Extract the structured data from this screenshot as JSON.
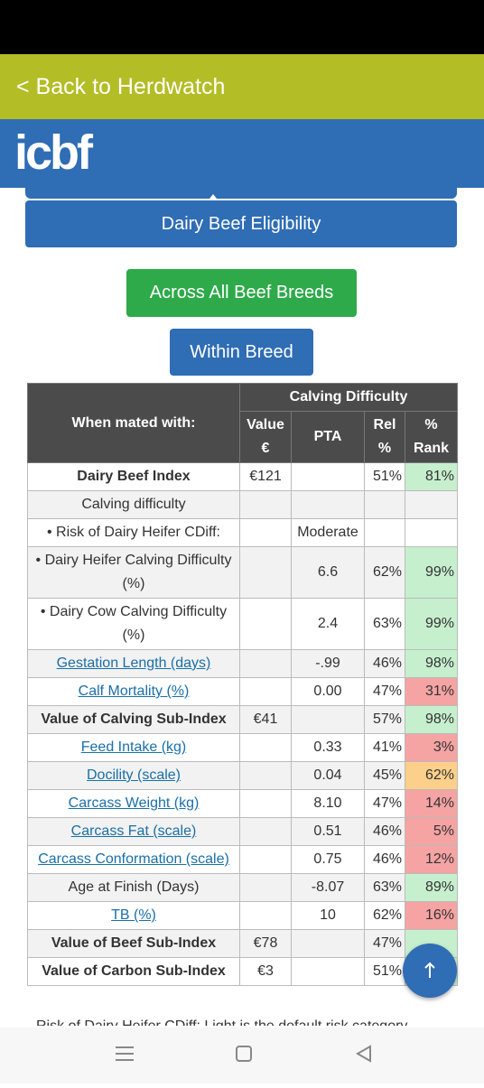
{
  "top_bar": {
    "back_link": "< Back to Herdwatch"
  },
  "header": {
    "logo": "icbf"
  },
  "buttons": {
    "eligibility": "Dairy Beef Eligibility",
    "across": "Across All Beef Breeds",
    "within": "Within Breed"
  },
  "table": {
    "header": {
      "mated": "When mated with:",
      "group": "Calving Difficulty",
      "value": "Value €",
      "pta": "PTA",
      "rel": "Rel %",
      "rank": "% Rank"
    },
    "rows": [
      {
        "label": "Dairy Beef Index",
        "style": "bold",
        "value": "€121",
        "rel": "51%",
        "rank": "81%",
        "rank_color": "green"
      },
      {
        "label": "Calving difficulty"
      },
      {
        "label": "• Risk of Dairy Heifer CDiff:",
        "pta": "Moderate"
      },
      {
        "label": "• Dairy Heifer Calving Difficulty (%)",
        "pta": "6.6",
        "rel": "62%",
        "rank": "99%",
        "rank_color": "green"
      },
      {
        "label": "• Dairy Cow Calving Difficulty (%)",
        "pta": "2.4",
        "rel": "63%",
        "rank": "99%",
        "rank_color": "green"
      },
      {
        "label": "Gestation Length (days)",
        "style": "link",
        "pta": "-.99",
        "rel": "46%",
        "rank": "98%",
        "rank_color": "green"
      },
      {
        "label": "Calf Mortality (%)",
        "style": "link",
        "pta": "0.00",
        "rel": "47%",
        "rank": "31%",
        "rank_color": "red"
      },
      {
        "label": "Value of Calving Sub-Index",
        "style": "bold",
        "value": "€41",
        "rel": "57%",
        "rank": "98%",
        "rank_color": "green"
      },
      {
        "label": "Feed Intake (kg)",
        "style": "link",
        "pta": "0.33",
        "rel": "41%",
        "rank": "3%",
        "rank_color": "red"
      },
      {
        "label": "Docility (scale)",
        "style": "link",
        "pta": "0.04",
        "rel": "45%",
        "rank": "62%",
        "rank_color": "orange"
      },
      {
        "label": "Carcass Weight (kg)",
        "style": "link",
        "pta": "8.10",
        "rel": "47%",
        "rank": "14%",
        "rank_color": "red"
      },
      {
        "label": "Carcass Fat (scale)",
        "style": "link",
        "pta": "0.51",
        "rel": "46%",
        "rank": "5%",
        "rank_color": "red"
      },
      {
        "label": "Carcass Conformation (scale)",
        "style": "link",
        "pta": "0.75",
        "rel": "46%",
        "rank": "12%",
        "rank_color": "red"
      },
      {
        "label": "Age at Finish (Days)",
        "pta": "-8.07",
        "rel": "63%",
        "rank": "89%",
        "rank_color": "green"
      },
      {
        "label": "TB (%)",
        "style": "link",
        "pta": "10",
        "rel": "62%",
        "rank": "16%",
        "rank_color": "red"
      },
      {
        "label": "Value of Beef Sub-Index",
        "style": "bold",
        "value": "€78",
        "rel": "47%",
        "rank_color": "green"
      },
      {
        "label": "Value of Carbon Sub-Index",
        "style": "bold",
        "value": "€3",
        "rel": "51%",
        "rank_color": "green"
      }
    ]
  },
  "footnote": "Risk of Dairy Heifer CDiff: Light is the default risk category"
}
